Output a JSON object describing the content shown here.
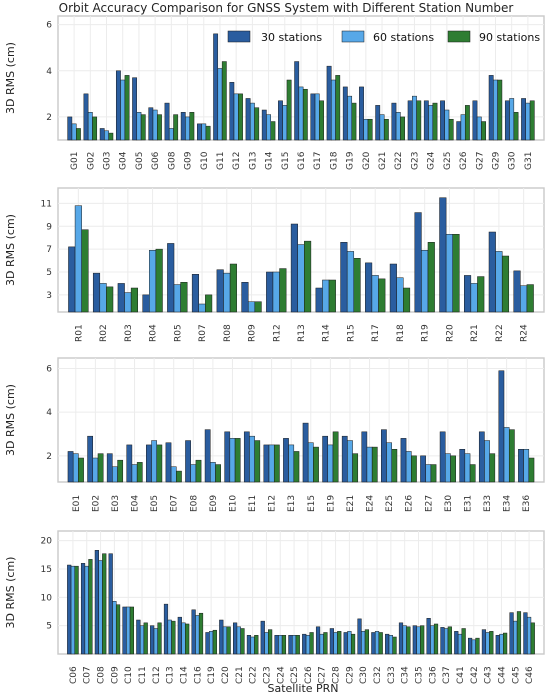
{
  "figure": {
    "title": "Orbit Accuracy Comparison for GNSS System with Different Station Number",
    "xlabel": "Satellite PRN",
    "colors": {
      "s30": "#2a5d9f",
      "s60": "#57a8e8",
      "s90": "#2e7d32"
    }
  },
  "legend": [
    {
      "label": "30 stations",
      "color": "#2a5d9f"
    },
    {
      "label": "60 stations",
      "color": "#57a8e8"
    },
    {
      "label": "90 stations",
      "color": "#2e7d32"
    }
  ],
  "chart_data": [
    {
      "type": "bar",
      "ylabel": "3D RMS (cm)",
      "ylim": [
        1,
        6.2
      ],
      "yticks": [
        2,
        4,
        6
      ],
      "categories": [
        "G01",
        "G02",
        "G03",
        "G04",
        "G05",
        "G06",
        "G08",
        "G09",
        "G10",
        "G11",
        "G12",
        "G13",
        "G14",
        "G15",
        "G16",
        "G17",
        "G18",
        "G19",
        "G20",
        "G21",
        "G22",
        "G23",
        "G24",
        "G25",
        "G26",
        "G27",
        "G29",
        "G30",
        "G31"
      ],
      "series": [
        {
          "name": "30 stations",
          "values": [
            2.0,
            3.0,
            1.5,
            4.0,
            3.7,
            2.4,
            2.6,
            2.2,
            1.7,
            5.6,
            3.5,
            2.8,
            2.3,
            2.7,
            4.4,
            3.0,
            4.2,
            3.3,
            3.3,
            2.5,
            2.6,
            2.7,
            2.7,
            2.7,
            1.8,
            2.7,
            3.8,
            2.7,
            2.8
          ]
        },
        {
          "name": "60 stations",
          "values": [
            1.7,
            2.2,
            1.4,
            3.6,
            2.2,
            2.3,
            1.5,
            2.0,
            1.7,
            4.1,
            3.0,
            2.6,
            2.1,
            2.5,
            3.3,
            3.0,
            3.6,
            2.9,
            1.9,
            2.1,
            2.2,
            2.9,
            2.5,
            2.3,
            2.1,
            2.0,
            3.6,
            2.8,
            2.6
          ]
        },
        {
          "name": "90 stations",
          "values": [
            1.5,
            2.0,
            1.3,
            3.8,
            2.1,
            2.1,
            2.1,
            2.2,
            1.6,
            4.4,
            3.0,
            2.4,
            1.8,
            3.6,
            3.2,
            2.7,
            3.8,
            2.6,
            1.9,
            1.9,
            2.0,
            2.7,
            2.6,
            1.9,
            2.5,
            1.8,
            3.6,
            2.2,
            2.7
          ]
        }
      ]
    },
    {
      "type": "bar",
      "ylabel": "3D RMS (cm)",
      "ylim": [
        1.5,
        12
      ],
      "yticks": [
        3,
        5,
        7,
        9,
        11
      ],
      "categories": [
        "R01",
        "R02",
        "R03",
        "R04",
        "R05",
        "R07",
        "R08",
        "R09",
        "R12",
        "R13",
        "R14",
        "R15",
        "R17",
        "R18",
        "R19",
        "R20",
        "R21",
        "R22",
        "R24"
      ],
      "series": [
        {
          "name": "30 stations",
          "values": [
            7.2,
            4.9,
            4.0,
            3.0,
            7.5,
            4.8,
            5.2,
            4.1,
            5.0,
            9.2,
            3.6,
            7.6,
            5.8,
            5.7,
            10.2,
            11.5,
            4.7,
            8.5,
            5.1
          ]
        },
        {
          "name": "60 stations",
          "values": [
            10.8,
            4.0,
            3.2,
            6.9,
            3.9,
            2.2,
            4.9,
            2.4,
            5.0,
            7.4,
            4.3,
            6.8,
            4.7,
            4.5,
            6.9,
            8.3,
            4.0,
            6.8,
            3.8
          ]
        },
        {
          "name": "90 stations",
          "values": [
            8.7,
            3.7,
            3.6,
            7.0,
            4.1,
            3.0,
            5.7,
            2.4,
            5.3,
            7.7,
            4.3,
            6.2,
            4.4,
            3.6,
            7.6,
            8.3,
            4.6,
            6.4,
            3.9
          ]
        }
      ]
    },
    {
      "type": "bar",
      "ylabel": "3D RMS (cm)",
      "ylim": [
        0.8,
        6.3
      ],
      "yticks": [
        2,
        4,
        6
      ],
      "categories": [
        "E01",
        "E02",
        "E03",
        "E04",
        "E05",
        "E07",
        "E08",
        "E09",
        "E10",
        "E11",
        "E12",
        "E13",
        "E15",
        "E19",
        "E21",
        "E24",
        "E25",
        "E26",
        "E27",
        "E30",
        "E31",
        "E33",
        "E34",
        "E36"
      ],
      "series": [
        {
          "name": "30 stations",
          "values": [
            2.2,
            2.9,
            2.1,
            2.5,
            2.5,
            2.6,
            2.7,
            3.2,
            3.1,
            3.1,
            2.5,
            2.8,
            3.5,
            2.9,
            2.9,
            3.1,
            3.2,
            2.8,
            2.0,
            3.1,
            2.3,
            3.1,
            5.9,
            2.3
          ]
        },
        {
          "name": "60 stations",
          "values": [
            2.1,
            1.9,
            1.5,
            1.6,
            2.7,
            1.5,
            1.6,
            1.7,
            2.8,
            2.9,
            2.5,
            2.5,
            2.6,
            2.5,
            2.7,
            2.4,
            2.6,
            2.2,
            1.6,
            2.1,
            2.1,
            2.7,
            3.3,
            2.3
          ]
        },
        {
          "name": "90 stations",
          "values": [
            1.9,
            2.1,
            1.8,
            1.7,
            2.5,
            1.3,
            1.8,
            1.6,
            2.8,
            2.7,
            2.5,
            2.2,
            2.4,
            3.1,
            2.1,
            2.4,
            2.3,
            2.0,
            1.6,
            2.0,
            1.6,
            2.1,
            3.2,
            1.9
          ]
        }
      ]
    },
    {
      "type": "bar",
      "ylabel": "3D RMS (cm)",
      "ylim": [
        0,
        21
      ],
      "yticks": [
        5,
        10,
        15,
        20
      ],
      "categories": [
        "C06",
        "C07",
        "C08",
        "C09",
        "C10",
        "C11",
        "C12",
        "C13",
        "C14",
        "C16",
        "C19",
        "C20",
        "C21",
        "C22",
        "C23",
        "C24",
        "C25",
        "C26",
        "C27",
        "C28",
        "C29",
        "C30",
        "C32",
        "C33",
        "C34",
        "C35",
        "C36",
        "C37",
        "C41",
        "C42",
        "C43",
        "C44",
        "C45",
        "C46"
      ],
      "series": [
        {
          "name": "30 stations",
          "values": [
            15.7,
            16.0,
            18.3,
            17.7,
            8.3,
            6.0,
            5.0,
            8.8,
            6.5,
            7.8,
            3.8,
            6.0,
            5.5,
            3.3,
            5.8,
            3.3,
            3.3,
            3.5,
            4.8,
            4.5,
            3.8,
            6.2,
            3.8,
            3.5,
            5.5,
            5.0,
            6.3,
            4.7,
            4.0,
            2.8,
            4.3,
            3.3,
            7.3,
            7.3
          ]
        },
        {
          "name": "60 stations",
          "values": [
            15.5,
            15.5,
            16.5,
            9.3,
            8.3,
            5.0,
            4.5,
            6.0,
            5.5,
            6.8,
            4.0,
            4.8,
            4.8,
            3.0,
            3.8,
            3.3,
            3.3,
            3.3,
            3.5,
            3.8,
            4.0,
            4.0,
            4.0,
            3.3,
            5.0,
            4.8,
            5.0,
            4.5,
            3.5,
            2.5,
            3.8,
            3.5,
            5.8,
            6.5
          ]
        },
        {
          "name": "90 stations",
          "values": [
            15.5,
            16.7,
            17.7,
            8.7,
            8.3,
            5.5,
            5.5,
            5.8,
            5.3,
            7.2,
            4.2,
            4.8,
            4.5,
            3.3,
            4.3,
            3.3,
            3.3,
            3.8,
            3.8,
            4.0,
            3.5,
            4.3,
            3.8,
            3.0,
            4.8,
            5.0,
            5.3,
            4.8,
            4.5,
            2.8,
            4.0,
            3.7,
            7.5,
            5.5
          ]
        }
      ]
    }
  ]
}
